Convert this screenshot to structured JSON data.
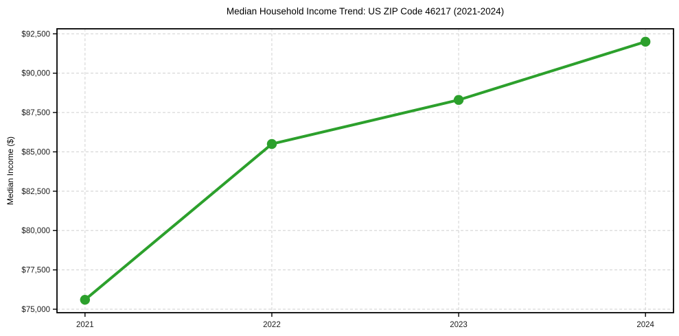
{
  "chart_data": {
    "type": "line",
    "title": "Median Household Income Trend: US ZIP Code 46217 (2021-2024)",
    "xlabel": "",
    "ylabel": "Median Income ($)",
    "x": [
      2021,
      2022,
      2023,
      2024
    ],
    "x_tick_labels": [
      "2021",
      "2022",
      "2023",
      "2024"
    ],
    "series": [
      {
        "name": "Median household income",
        "values": [
          75600,
          85500,
          88300,
          92000
        ],
        "color": "#2ca02c",
        "marker": "circle"
      }
    ],
    "y_ticks": [
      {
        "value": 75000,
        "label": "$75,000"
      },
      {
        "value": 77500,
        "label": "$77,500"
      },
      {
        "value": 80000,
        "label": "$80,000"
      },
      {
        "value": 82500,
        "label": "$82,500"
      },
      {
        "value": 85000,
        "label": "$85,000"
      },
      {
        "value": 87500,
        "label": "$87,500"
      },
      {
        "value": 90000,
        "label": "$90,000"
      },
      {
        "value": 92500,
        "label": "$92,500"
      }
    ],
    "xlim": [
      2020.85,
      2024.15
    ],
    "ylim": [
      74780,
      92820
    ],
    "grid": true,
    "grid_style": "dashed",
    "legend": "none",
    "colors": {
      "line": "#2ca02c",
      "grid": "#d4d4d4",
      "spine": "#000000",
      "tick": "#000000",
      "tick_label": "#1a1a1a",
      "background": "#ffffff"
    }
  }
}
